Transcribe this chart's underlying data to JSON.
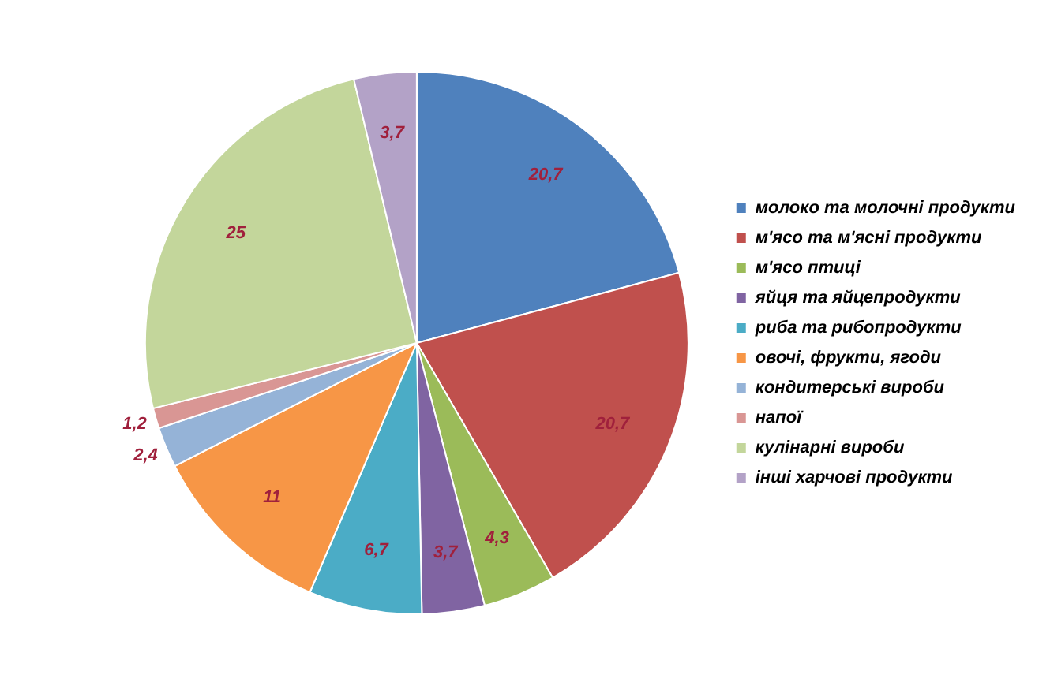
{
  "chart_data": {
    "type": "pie",
    "categories": [
      "молоко та молочні продукти",
      "м'ясо та м'ясні продукти",
      "м'ясо птиці",
      "яйця та яйцепродукти",
      "риба та рибопродукти",
      "овочі, фрукти, ягоди",
      "кондитерські вироби",
      "напої",
      "кулінарні вироби",
      "інші харчові продукти"
    ],
    "values": [
      20.7,
      20.7,
      4.3,
      3.7,
      6.7,
      11,
      2.4,
      1.2,
      25,
      3.7
    ],
    "colors": [
      "#4f81bd",
      "#c0504d",
      "#9bbb59",
      "#8064a2",
      "#4bacc6",
      "#f79646",
      "#95b3d7",
      "#d99694",
      "#c3d69b",
      "#b3a2c7"
    ],
    "value_labels": [
      "20,7",
      "20,7",
      "4,3",
      "3,7",
      "6,7",
      "11",
      "2,4",
      "1,2",
      "25",
      "3,7"
    ],
    "legend": "right"
  }
}
